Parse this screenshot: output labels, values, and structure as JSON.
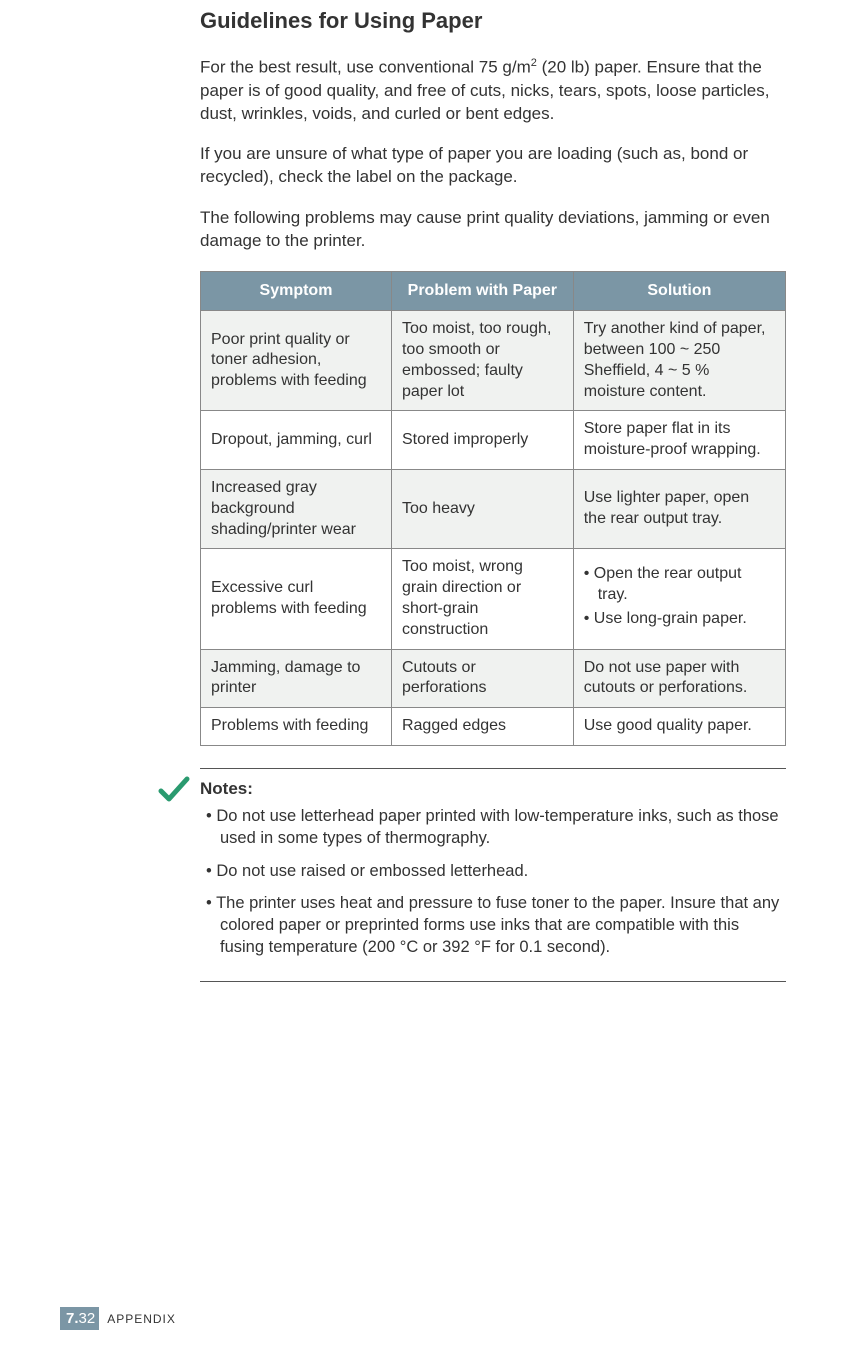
{
  "heading": "Guidelines for Using Paper",
  "para1_pre": "For the best result, use conventional 75 g/m",
  "para1_sup": "2",
  "para1_post": " (20 lb) paper. Ensure that the paper is of good quality, and free of cuts, nicks, tears, spots, loose particles, dust, wrinkles, voids, and curled or bent edges.",
  "para2": "If you are unsure of what type of paper you are loading (such as, bond or recycled), check the label on the package.",
  "para3": "The following problems may cause print quality deviations, jamming or even damage to the printer.",
  "table": {
    "header_bg": "#7b96a5",
    "header_color": "#ffffff",
    "alt_row_bg": "#f0f2f0",
    "columns": [
      "Symptom",
      "Problem with Paper",
      "Solution"
    ],
    "rows": [
      {
        "alt": true,
        "symptom": "Poor print quality or toner adhesion, problems with feeding",
        "problem": "Too moist, too rough, too smooth or embossed; faulty paper lot",
        "solution": "Try another kind of paper, between 100 ~ 250 Sheffield, 4 ~ 5 % moisture content."
      },
      {
        "alt": false,
        "symptom": "Dropout, jamming, curl",
        "problem": "Stored improperly",
        "solution": "Store paper flat in its moisture-proof wrapping."
      },
      {
        "alt": true,
        "symptom": "Increased gray background shading/printer wear",
        "problem": "Too heavy",
        "solution": "Use lighter paper, open the rear output tray."
      },
      {
        "alt": false,
        "symptom": "Excessive curl problems with feeding",
        "problem": "Too moist, wrong grain direction or short-grain construction",
        "solution_list": [
          "Open the rear output tray.",
          "Use long-grain paper."
        ]
      },
      {
        "alt": true,
        "symptom": "Jamming, damage to printer",
        "problem": "Cutouts or perforations",
        "solution": "Do not use paper with cutouts or perforations."
      },
      {
        "alt": false,
        "symptom": "Problems with feeding",
        "problem": "Ragged edges",
        "solution": "Use good quality paper."
      }
    ]
  },
  "notes": {
    "title": "Notes:",
    "icon_color": "#2a9a6f",
    "items": [
      "Do not use letterhead paper printed with low-temperature inks, such as those used in some types of thermography.",
      "Do not use raised or embossed letterhead.",
      "The printer uses heat and pressure to fuse toner to the paper. Insure that any colored paper or preprinted forms use inks that are compatible with this fusing temperature (200 °C or 392 °F for 0.1 second)."
    ]
  },
  "footer": {
    "chapter": "7.",
    "page": "32",
    "label": "APPENDIX",
    "badge_bg": "#7b96a5"
  }
}
